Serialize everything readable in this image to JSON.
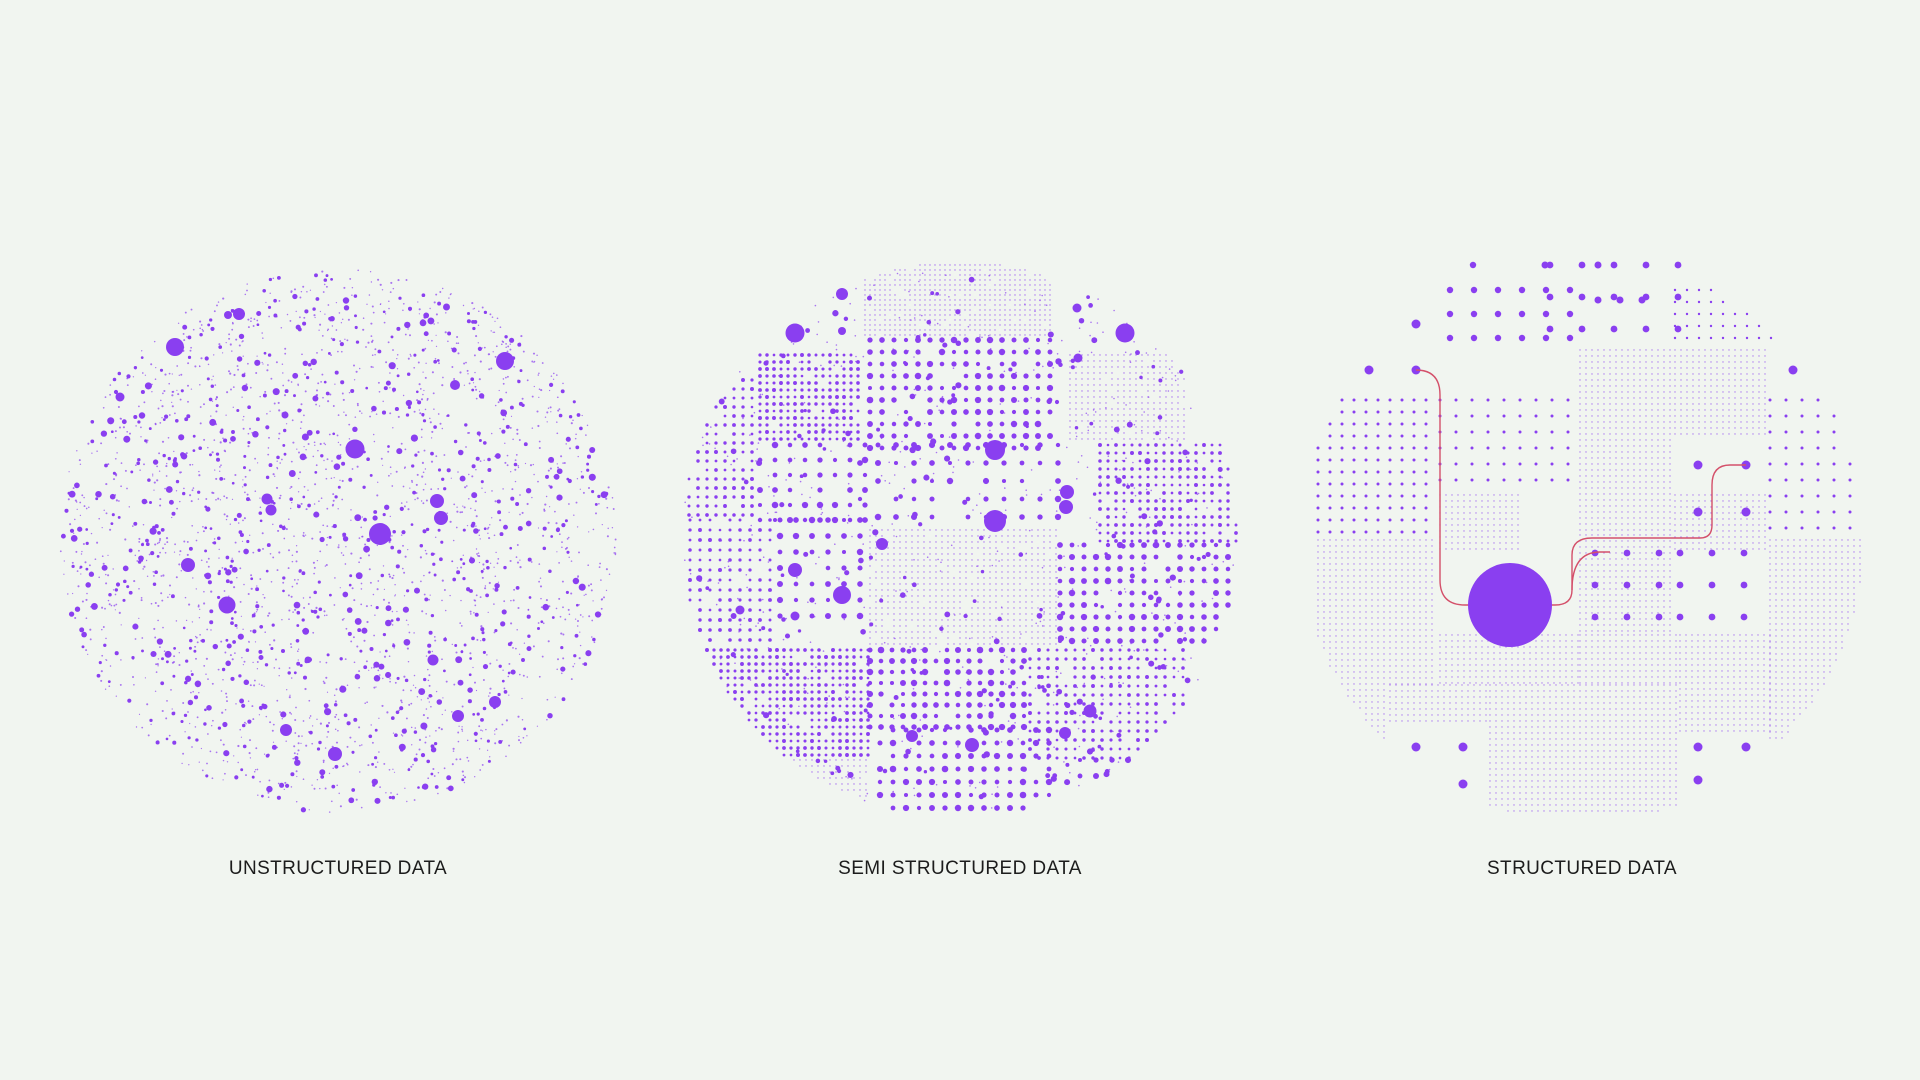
{
  "colors": {
    "background": "#f1f5f0",
    "dot": "#8a3ff0",
    "connector": "#d4506a",
    "label": "#1c1c1c"
  },
  "panels": [
    {
      "id": "unstructured",
      "label": "UNSTRUCTURED DATA"
    },
    {
      "id": "semi",
      "label": "SEMI STRUCTURED DATA"
    },
    {
      "id": "structured",
      "label": "STRUCTURED DATA"
    }
  ]
}
